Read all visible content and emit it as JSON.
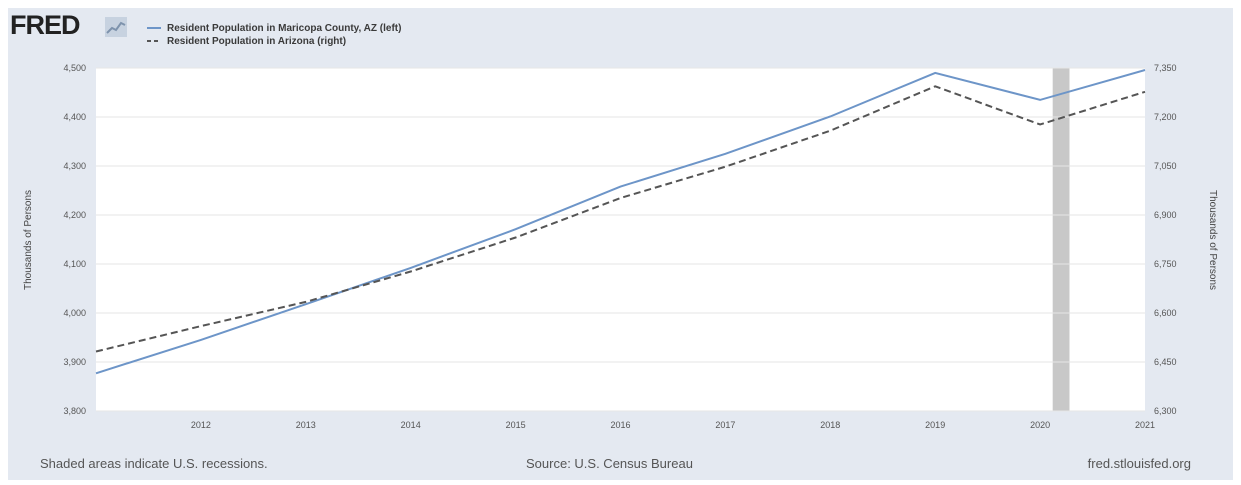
{
  "brand": {
    "logo_text": "FRED",
    "logo_icon": "graph-icon"
  },
  "legend": [
    {
      "label": "Resident Population in Maricopa County, AZ (left)",
      "style": "solid",
      "color": "#6d95c8"
    },
    {
      "label": "Resident Population in Arizona (right)",
      "style": "dashed",
      "color": "#555555"
    }
  ],
  "chart_data": {
    "type": "line",
    "x": [
      2011,
      2012,
      2013,
      2014,
      2015,
      2016,
      2017,
      2018,
      2019,
      2020,
      2021
    ],
    "x_tick_labels": [
      "2012",
      "2013",
      "2014",
      "2015",
      "2016",
      "2017",
      "2018",
      "2019",
      "2020",
      "2021"
    ],
    "series": [
      {
        "name": "Resident Population in Maricopa County, AZ (left)",
        "axis": "left",
        "color": "#6d95c8",
        "dash": "solid",
        "values": [
          3877,
          3945,
          4018,
          4092,
          4171,
          4258,
          4325,
          4401,
          4490,
          4435,
          4496
        ]
      },
      {
        "name": "Resident Population in Arizona (right)",
        "axis": "right",
        "color": "#555555",
        "dash": "dashed",
        "values": [
          6482,
          6560,
          6634,
          6727,
          6831,
          6952,
          7048,
          7158,
          7294,
          7177,
          7277
        ]
      }
    ],
    "y_left": {
      "label": "Thousands of Persons",
      "range": [
        3800,
        4500
      ],
      "ticks": [
        3800,
        3900,
        4000,
        4100,
        4200,
        4300,
        4400,
        4500
      ],
      "tick_labels": [
        "3,800",
        "3,900",
        "4,000",
        "4,100",
        "4,200",
        "4,300",
        "4,400",
        "4,500"
      ]
    },
    "y_right": {
      "label": "Thousands of Persons",
      "range": [
        6300,
        7350
      ],
      "ticks": [
        6300,
        6450,
        6600,
        6750,
        6900,
        7050,
        7200,
        7350
      ],
      "tick_labels": [
        "6,300",
        "6,450",
        "6,600",
        "6,750",
        "6,900",
        "7,050",
        "7,200",
        "7,350"
      ]
    },
    "recessions": [
      [
        2020.12,
        2020.28
      ]
    ],
    "grid": true,
    "legend_position": "top-left"
  },
  "footer": {
    "left": "Shaded areas indicate U.S. recessions.",
    "center": "Source: U.S. Census Bureau",
    "right": "fred.stlouisfed.org"
  }
}
